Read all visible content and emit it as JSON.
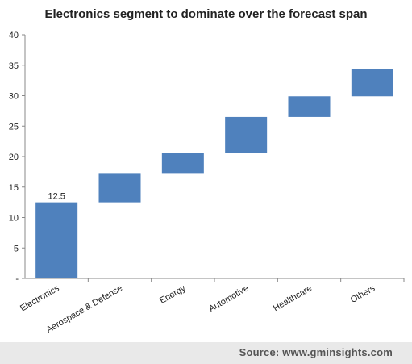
{
  "chart_title": "Electronics segment to dominate over the forecast span",
  "source_text": "Source: www.gminsights.com",
  "chart_data": {
    "type": "bar",
    "subtype": "waterfall",
    "title": "Electronics segment to dominate over the forecast span",
    "categories": [
      "Electronics",
      "Aerospace & Defense",
      "Energy",
      "Automotive",
      "Healthcare",
      "Others"
    ],
    "series": [
      {
        "values": [
          12.5,
          4.8,
          3.3,
          5.9,
          3.4,
          4.5
        ],
        "base": [
          0,
          12.5,
          17.3,
          20.6,
          26.5,
          29.9
        ]
      }
    ],
    "data_labels": [
      {
        "category": "Electronics",
        "text": "12.5"
      }
    ],
    "ylim": [
      0,
      40
    ],
    "yticks": [
      "-",
      "5",
      "10",
      "15",
      "20",
      "25",
      "30",
      "35",
      "40"
    ],
    "ytick_values": [
      0,
      5,
      10,
      15,
      20,
      25,
      30,
      35,
      40
    ],
    "grid": false,
    "legend": "none",
    "bar_color": "#4f81bd"
  }
}
